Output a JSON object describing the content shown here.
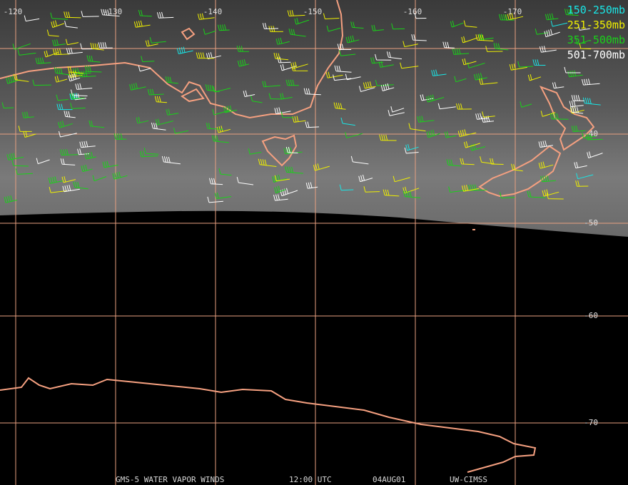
{
  "grid": {
    "longitudes": [
      "-120",
      "-130",
      "-140",
      "-150",
      "-160",
      "-170"
    ],
    "latitudes": [
      "-40",
      "-50",
      "-60",
      "-70"
    ]
  },
  "legend": [
    {
      "label": "150-250mb",
      "color": "#19e6e6"
    },
    {
      "label": "251-350mb",
      "color": "#f0f000"
    },
    {
      "label": "351-500mb",
      "color": "#19d219"
    },
    {
      "label": "501-700mb",
      "color": "#ffffff"
    }
  ],
  "footer": [
    "GMS-5 WATER VAPOR WINDS",
    "12:00 UTC",
    "04AUG01",
    "UW-CIMSS"
  ]
}
